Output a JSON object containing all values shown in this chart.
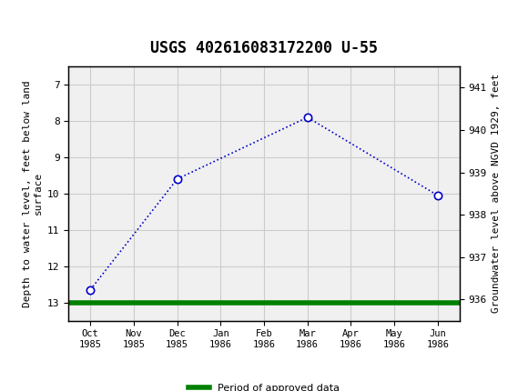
{
  "title": "USGS 402616083172200 U-55",
  "x_labels": [
    "Oct\n1985",
    "Nov\n1985",
    "Dec\n1985",
    "Jan\n1986",
    "Feb\n1986",
    "Mar\n1986",
    "Apr\n1986",
    "May\n1986",
    "Jun\n1986"
  ],
  "x_positions": [
    0,
    1,
    2,
    3,
    4,
    5,
    6,
    7,
    8
  ],
  "data_x": [
    0,
    2,
    5,
    8
  ],
  "data_y": [
    12.65,
    9.6,
    7.9,
    10.05
  ],
  "left_ylim": [
    13.5,
    6.5
  ],
  "left_yticks": [
    7.0,
    8.0,
    9.0,
    10.0,
    11.0,
    12.0,
    13.0
  ],
  "right_ylim": [
    935.5,
    941.5
  ],
  "right_yticks": [
    936.0,
    937.0,
    938.0,
    939.0,
    940.0,
    941.0
  ],
  "left_ylabel": "Depth to water level, feet below land\nsurface",
  "right_ylabel": "Groundwater level above NGVD 1929, feet",
  "line_color": "#0000cc",
  "marker_color": "#0000cc",
  "green_line_y": 13.0,
  "legend_label": "Period of approved data",
  "legend_color": "#008000",
  "header_bg_color": "#006633",
  "background_color": "#f0f0f0",
  "grid_color": "#cccccc",
  "font_family": "monospace"
}
